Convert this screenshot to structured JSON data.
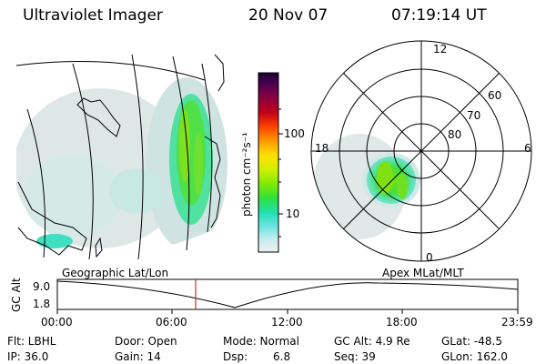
{
  "header": {
    "instrument": "Ultraviolet Imager",
    "date": "20 Nov 07",
    "time": "07:19:14 UT"
  },
  "geo_map": {
    "label": "Geographic Lat/Lon"
  },
  "polar_map": {
    "label": "Apex  MLat/MLT",
    "mlt_labels": [
      "12",
      "18",
      "6",
      "0"
    ],
    "lat_labels": [
      "60",
      "70",
      "80"
    ]
  },
  "colorbar": {
    "label": "photon cm⁻²s⁻¹",
    "ticks": [
      "100",
      "10"
    ],
    "colors": [
      "#1a0033",
      "#3b0040",
      "#6a0040",
      "#a00020",
      "#d40010",
      "#ff3000",
      "#ff8800",
      "#ffcc00",
      "#f2f200",
      "#c8f000",
      "#88ee00",
      "#40e040",
      "#20e090",
      "#30e0d0",
      "#a0e8e8",
      "#d8eeee",
      "#f0f4f4"
    ]
  },
  "altitude_plot": {
    "ylabel": "GC Alt",
    "ymax_label": "9.0",
    "ymin_label": "1.8",
    "xticks": [
      "00:00",
      "06:00",
      "12:00",
      "18:00",
      "23:59"
    ],
    "marker_color": "#c83030"
  },
  "footer": {
    "flt": "Flt: LBHL",
    "ip": "IP: 36.0",
    "door": "Door: Open",
    "gain": "Gain: 14",
    "mode": "Mode: Normal",
    "dsp": "Dsp:",
    "dsp_value": "6.8",
    "gcalt": "GC Alt: 4.9 Re",
    "seq": "Seq: 39",
    "glat": "GLat: -48.5",
    "glon": "GLon: 162.0"
  }
}
